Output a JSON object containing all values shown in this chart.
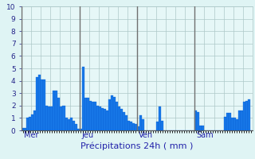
{
  "title": "Précipitations 24h ( mm )",
  "background_color": "#dff4f4",
  "plot_bg_color": "#e6f7f7",
  "bar_color": "#1878e8",
  "bar_edge_color": "#0055cc",
  "grid_color": "#adc8c8",
  "grid_minor_color": "#c8dede",
  "day_line_color": "#707070",
  "ylim": [
    0,
    10
  ],
  "yticks": [
    0,
    1,
    2,
    3,
    4,
    5,
    6,
    7,
    8,
    9,
    10
  ],
  "day_labels": [
    "Mer",
    "Jeu",
    "Ven",
    "Sam"
  ],
  "day_positions": [
    0,
    24,
    48,
    72
  ],
  "values": [
    0.2,
    0.2,
    1.0,
    1.1,
    1.3,
    1.6,
    4.3,
    4.5,
    4.1,
    4.1,
    2.0,
    1.9,
    1.9,
    3.2,
    3.2,
    2.6,
    1.9,
    2.0,
    1.0,
    0.9,
    1.0,
    0.8,
    0.5,
    0.15,
    0.1,
    5.1,
    2.6,
    2.6,
    2.4,
    2.3,
    2.3,
    2.0,
    1.9,
    1.8,
    1.7,
    1.6,
    2.5,
    2.8,
    2.7,
    2.3,
    1.9,
    1.7,
    1.5,
    1.2,
    0.8,
    0.7,
    0.6,
    0.5,
    0.3,
    1.2,
    0.9,
    0.0,
    0.0,
    0.0,
    0.0,
    0.0,
    0.7,
    1.9,
    0.8,
    0.0,
    0.0,
    0.0,
    0.0,
    0.0,
    0.0,
    0.0,
    0.0,
    0.0,
    0.0,
    0.0,
    0.0,
    0.0,
    1.6,
    1.5,
    0.4,
    0.4,
    0.0,
    0.0,
    0.0,
    0.0,
    0.0,
    0.0,
    0.0,
    0.0,
    1.1,
    1.4,
    1.4,
    1.0,
    1.0,
    0.9,
    1.6,
    1.6,
    2.3,
    2.4,
    2.5,
    0.0
  ],
  "title_fontsize": 8,
  "ylabel_fontsize": 6.5,
  "day_label_fontsize": 7
}
